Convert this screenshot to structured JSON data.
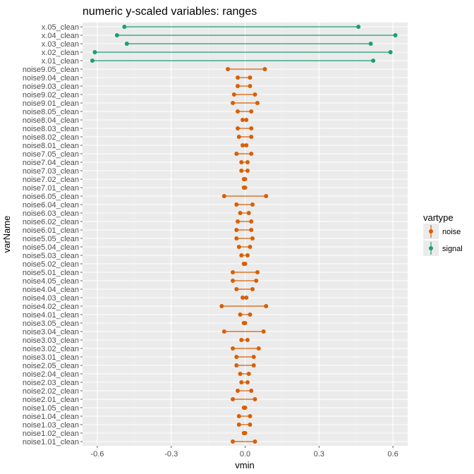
{
  "chart_data": {
    "type": "dumbbell",
    "title": "numeric y-scaled variables: ranges",
    "xlabel": "vmin",
    "ylabel": "varName",
    "xlim": [
      -0.66,
      0.66
    ],
    "xticks": [
      -0.6,
      -0.3,
      0.0,
      0.3,
      0.6
    ],
    "xtick_labels": [
      "-0.6",
      "-0.3",
      "0.0",
      "0.3",
      "0.6"
    ],
    "grid": true,
    "legend": {
      "title": "vartype",
      "position": "right",
      "entries": [
        {
          "label": "noise",
          "color": "#d95f02"
        },
        {
          "label": "signal",
          "color": "#1b9e77"
        }
      ]
    },
    "colors": {
      "noise": "#d95f02",
      "signal": "#1b9e77",
      "panel": "#ebebeb"
    },
    "rows": [
      {
        "name": "x.05_clean",
        "vartype": "signal",
        "min": -0.49,
        "max": 0.46
      },
      {
        "name": "x.04_clean",
        "vartype": "signal",
        "min": -0.52,
        "max": 0.61
      },
      {
        "name": "x.03_clean",
        "vartype": "signal",
        "min": -0.48,
        "max": 0.51
      },
      {
        "name": "x.02_clean",
        "vartype": "signal",
        "min": -0.61,
        "max": 0.59
      },
      {
        "name": "x.01_clean",
        "vartype": "signal",
        "min": -0.62,
        "max": 0.52
      },
      {
        "name": "noise9.05_clean",
        "vartype": "noise",
        "min": -0.07,
        "max": 0.08
      },
      {
        "name": "noise9.04_clean",
        "vartype": "noise",
        "min": -0.03,
        "max": 0.02
      },
      {
        "name": "noise9.03_clean",
        "vartype": "noise",
        "min": -0.03,
        "max": 0.02
      },
      {
        "name": "noise9.02_clean",
        "vartype": "noise",
        "min": -0.045,
        "max": 0.04
      },
      {
        "name": "noise9.01_clean",
        "vartype": "noise",
        "min": -0.05,
        "max": 0.05
      },
      {
        "name": "noise8.05_clean",
        "vartype": "noise",
        "min": -0.03,
        "max": 0.025
      },
      {
        "name": "noise8.04_clean",
        "vartype": "noise",
        "min": -0.01,
        "max": 0.005
      },
      {
        "name": "noise8.03_clean",
        "vartype": "noise",
        "min": -0.03,
        "max": 0.025
      },
      {
        "name": "noise8.02_clean",
        "vartype": "noise",
        "min": -0.025,
        "max": 0.025
      },
      {
        "name": "noise8.01_clean",
        "vartype": "noise",
        "min": -0.01,
        "max": 0.005
      },
      {
        "name": "noise7.05_clean",
        "vartype": "noise",
        "min": -0.035,
        "max": 0.025
      },
      {
        "name": "noise7.04_clean",
        "vartype": "noise",
        "min": -0.015,
        "max": 0.01
      },
      {
        "name": "noise7.03_clean",
        "vartype": "noise",
        "min": -0.015,
        "max": 0.01
      },
      {
        "name": "noise7.02_clean",
        "vartype": "noise",
        "min": -0.005,
        "max": 0.0
      },
      {
        "name": "noise7.01_clean",
        "vartype": "noise",
        "min": -0.005,
        "max": 0.0
      },
      {
        "name": "noise6.05_clean",
        "vartype": "noise",
        "min": -0.085,
        "max": 0.085
      },
      {
        "name": "noise6.04_clean",
        "vartype": "noise",
        "min": -0.035,
        "max": 0.03
      },
      {
        "name": "noise6.03_clean",
        "vartype": "noise",
        "min": -0.02,
        "max": 0.015
      },
      {
        "name": "noise6.02_clean",
        "vartype": "noise",
        "min": -0.03,
        "max": 0.025
      },
      {
        "name": "noise6.01_clean",
        "vartype": "noise",
        "min": -0.035,
        "max": 0.025
      },
      {
        "name": "noise5.05_clean",
        "vartype": "noise",
        "min": -0.035,
        "max": 0.03
      },
      {
        "name": "noise5.04_clean",
        "vartype": "noise",
        "min": -0.025,
        "max": 0.02
      },
      {
        "name": "noise5.03_clean",
        "vartype": "noise",
        "min": -0.015,
        "max": 0.01
      },
      {
        "name": "noise5.02_clean",
        "vartype": "noise",
        "min": -0.005,
        "max": 0.0
      },
      {
        "name": "noise5.01_clean",
        "vartype": "noise",
        "min": -0.05,
        "max": 0.05
      },
      {
        "name": "noise4.05_clean",
        "vartype": "noise",
        "min": -0.05,
        "max": 0.045
      },
      {
        "name": "noise4.04_clean",
        "vartype": "noise",
        "min": -0.035,
        "max": 0.03
      },
      {
        "name": "noise4.03_clean",
        "vartype": "noise",
        "min": -0.01,
        "max": 0.005
      },
      {
        "name": "noise4.02_clean",
        "vartype": "noise",
        "min": -0.095,
        "max": 0.085
      },
      {
        "name": "noise4.01_clean",
        "vartype": "noise",
        "min": -0.02,
        "max": 0.02
      },
      {
        "name": "noise3.05_clean",
        "vartype": "noise",
        "min": -0.005,
        "max": 0.0
      },
      {
        "name": "noise3.04_clean",
        "vartype": "noise",
        "min": -0.085,
        "max": 0.075
      },
      {
        "name": "noise3.03_clean",
        "vartype": "noise",
        "min": -0.015,
        "max": 0.01
      },
      {
        "name": "noise3.02_clean",
        "vartype": "noise",
        "min": -0.05,
        "max": 0.055
      },
      {
        "name": "noise3.01_clean",
        "vartype": "noise",
        "min": -0.035,
        "max": 0.035
      },
      {
        "name": "noise2.05_clean",
        "vartype": "noise",
        "min": -0.035,
        "max": 0.035
      },
      {
        "name": "noise2.04_clean",
        "vartype": "noise",
        "min": -0.02,
        "max": 0.015
      },
      {
        "name": "noise2.03_clean",
        "vartype": "noise",
        "min": -0.015,
        "max": 0.01
      },
      {
        "name": "noise2.02_clean",
        "vartype": "noise",
        "min": -0.03,
        "max": 0.025
      },
      {
        "name": "noise2.01_clean",
        "vartype": "noise",
        "min": -0.05,
        "max": 0.04
      },
      {
        "name": "noise1.05_clean",
        "vartype": "noise",
        "min": -0.005,
        "max": 0.0
      },
      {
        "name": "noise1.04_clean",
        "vartype": "noise",
        "min": -0.025,
        "max": 0.02
      },
      {
        "name": "noise1.03_clean",
        "vartype": "noise",
        "min": -0.025,
        "max": 0.02
      },
      {
        "name": "noise1.02_clean",
        "vartype": "noise",
        "min": -0.005,
        "max": 0.0
      },
      {
        "name": "noise1.01_clean",
        "vartype": "noise",
        "min": -0.05,
        "max": 0.04
      }
    ]
  }
}
